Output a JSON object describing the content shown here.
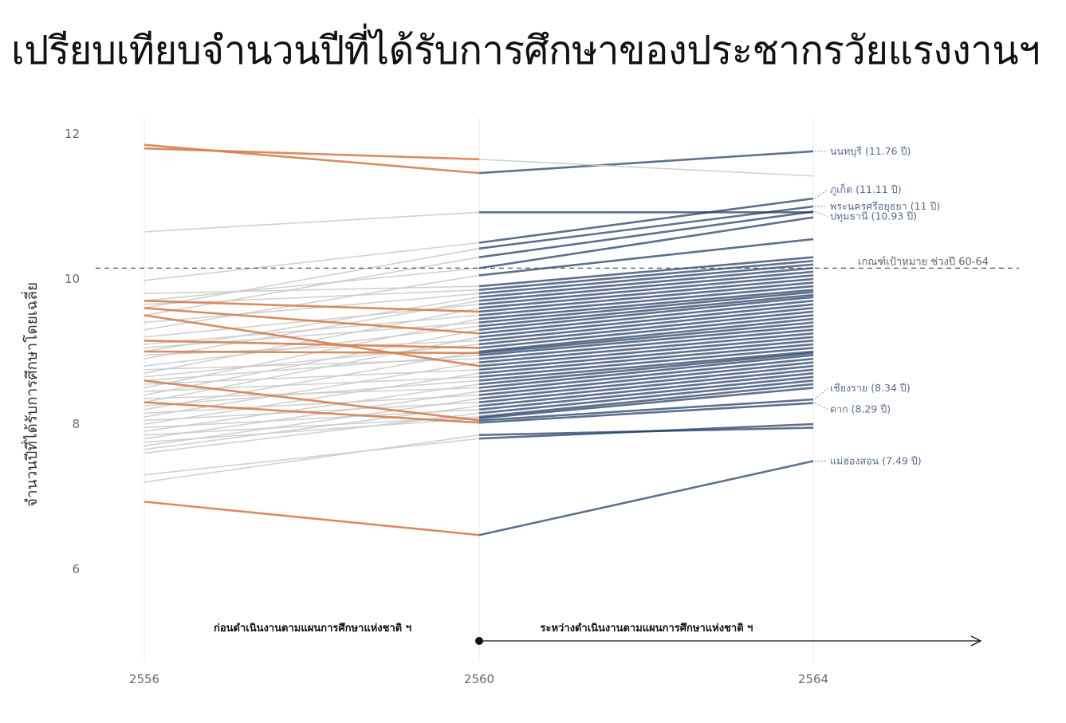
{
  "title": "เปรียบเทียบจำนวนปีที่ได้รับการศึกษาของประชากรวัยแรงงานฯ",
  "chart_data": {
    "type": "line",
    "ylabel": "จำนวนปีที่ได้รับการศึกษาโดยเฉลี่ย",
    "x": [
      2556,
      2560,
      2564
    ],
    "x_tick_labels": [
      "2556",
      "2560",
      "2564"
    ],
    "ylim": [
      4.9,
      12.3
    ],
    "y_ticks": [
      6,
      8,
      10,
      12
    ],
    "grid": true,
    "threshold": {
      "value": 10.15,
      "label": "เกณฑ์เป้าหมาย ช่วงปี 60-64"
    },
    "period_annotations": {
      "before": "ก่อนดำเนินงานตามแผนการศึกษาแห่งชาติ ฯ",
      "during": "ระหว่างดำเนินงานตามแผนการศึกษาแห่งชาติ ฯ"
    },
    "colors": {
      "orange": "#d4814f",
      "blue": "#1e3a5f",
      "gray": "#cccccc",
      "threshold": "#555555"
    },
    "labeled_provinces": [
      {
        "label": "นนทบุรี (11.76 ปี)",
        "values": [
          11.85,
          11.46,
          11.76
        ]
      },
      {
        "label": "ภูเก็ต (11.11 ปี)",
        "values": [
          10.2,
          10.5,
          11.11
        ]
      },
      {
        "label": "พระนครศรีอยุธยา (11 ปี)",
        "values": [
          10.0,
          10.42,
          11.0
        ]
      },
      {
        "label": "ปทุมธานี (10.93 ปี)",
        "values": [
          9.75,
          10.25,
          10.93
        ]
      },
      {
        "label": "เชียงราย (8.34 ปี)",
        "values": [
          8.6,
          8.05,
          8.34
        ]
      },
      {
        "label": "ตาก (8.29 ปี)",
        "values": [
          8.3,
          8.02,
          8.29
        ]
      },
      {
        "label": "แม่ฮ่องสอน (7.49 ปี)",
        "values": [
          6.93,
          6.47,
          7.49
        ]
      }
    ],
    "series": [
      {
        "values": [
          11.85,
          11.46,
          11.76
        ]
      },
      {
        "values": [
          11.8,
          11.65,
          11.42
        ]
      },
      {
        "values": [
          10.65,
          10.92,
          10.92
        ]
      },
      {
        "values": [
          9.98,
          10.5,
          11.11
        ]
      },
      {
        "values": [
          9.6,
          10.42,
          11.0
        ]
      },
      {
        "values": [
          9.5,
          10.3,
          10.93
        ]
      },
      {
        "values": [
          9.7,
          10.15,
          10.85
        ]
      },
      {
        "values": [
          9.3,
          10.05,
          10.55
        ]
      },
      {
        "values": [
          9.8,
          9.9,
          10.3
        ]
      },
      {
        "values": [
          9.65,
          9.85,
          10.25
        ]
      },
      {
        "values": [
          9.4,
          9.8,
          10.2
        ]
      },
      {
        "values": [
          9.0,
          9.75,
          10.15
        ]
      },
      {
        "values": [
          8.9,
          9.7,
          10.1
        ]
      },
      {
        "values": [
          9.2,
          9.65,
          10.05
        ]
      },
      {
        "values": [
          8.7,
          9.6,
          10.0
        ]
      },
      {
        "values": [
          9.7,
          9.55,
          9.95
        ]
      },
      {
        "values": [
          9.1,
          9.5,
          9.9
        ]
      },
      {
        "values": [
          8.5,
          9.45,
          9.85
        ]
      },
      {
        "values": [
          9.05,
          9.4,
          9.82
        ]
      },
      {
        "values": [
          8.8,
          9.35,
          9.78
        ]
      },
      {
        "values": [
          8.4,
          9.3,
          9.75
        ]
      },
      {
        "values": [
          9.6,
          9.25,
          9.7
        ]
      },
      {
        "values": [
          8.3,
          9.2,
          9.65
        ]
      },
      {
        "values": [
          8.95,
          9.15,
          9.6
        ]
      },
      {
        "values": [
          8.65,
          9.1,
          9.55
        ]
      },
      {
        "values": [
          9.15,
          9.05,
          9.5
        ]
      },
      {
        "values": [
          8.2,
          9.0,
          9.45
        ]
      },
      {
        "values": [
          9.0,
          8.98,
          9.4
        ]
      },
      {
        "values": [
          8.6,
          8.95,
          9.35
        ]
      },
      {
        "values": [
          8.75,
          8.9,
          9.3
        ]
      },
      {
        "values": [
          8.1,
          8.85,
          9.25
        ]
      },
      {
        "values": [
          9.5,
          8.8,
          9.2
        ]
      },
      {
        "values": [
          8.55,
          8.75,
          9.15
        ]
      },
      {
        "values": [
          8.0,
          8.7,
          9.1
        ]
      },
      {
        "values": [
          8.45,
          8.65,
          9.05
        ]
      },
      {
        "values": [
          8.25,
          8.6,
          9.0
        ]
      },
      {
        "values": [
          7.9,
          8.55,
          8.98
        ]
      },
      {
        "values": [
          8.35,
          8.5,
          8.95
        ]
      },
      {
        "values": [
          7.8,
          8.45,
          8.9
        ]
      },
      {
        "values": [
          8.15,
          8.4,
          8.85
        ]
      },
      {
        "values": [
          7.7,
          8.35,
          8.8
        ]
      },
      {
        "values": [
          8.05,
          8.3,
          8.75
        ]
      },
      {
        "values": [
          7.65,
          8.25,
          8.7
        ]
      },
      {
        "values": [
          7.95,
          8.2,
          8.65
        ]
      },
      {
        "values": [
          7.6,
          8.15,
          8.6
        ]
      },
      {
        "values": [
          7.85,
          8.1,
          8.55
        ]
      },
      {
        "values": [
          7.75,
          8.08,
          8.5
        ]
      },
      {
        "values": [
          8.6,
          8.05,
          8.34
        ]
      },
      {
        "values": [
          8.3,
          8.02,
          8.29
        ]
      },
      {
        "values": [
          7.3,
          7.8,
          8.0
        ]
      },
      {
        "values": [
          7.2,
          7.85,
          7.95
        ]
      },
      {
        "values": [
          6.93,
          6.47,
          7.49
        ]
      }
    ]
  }
}
